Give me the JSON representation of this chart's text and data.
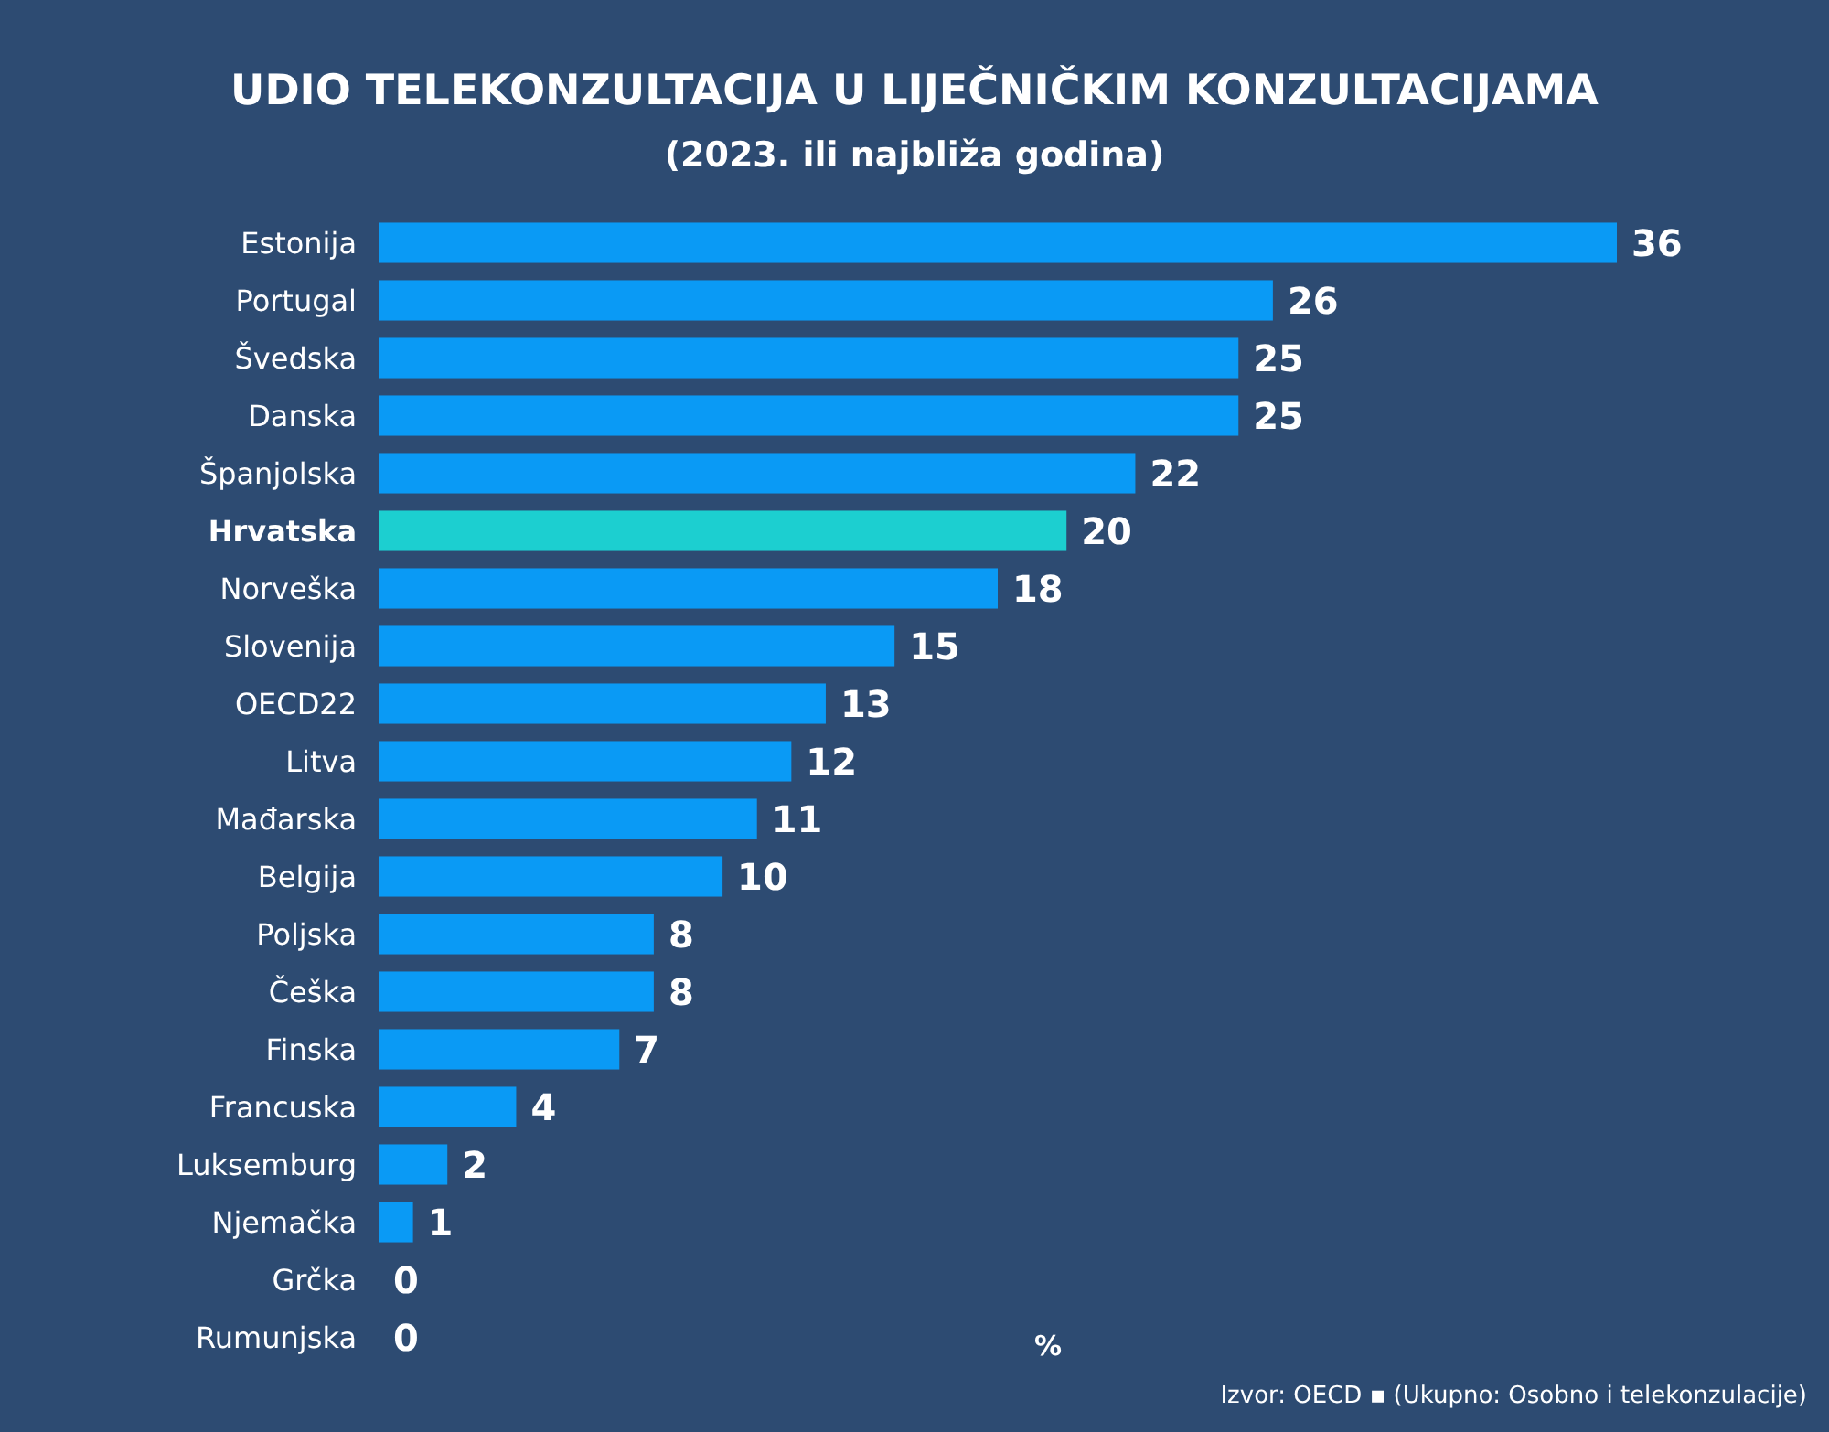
{
  "chart_data": {
    "type": "bar",
    "orientation": "horizontal",
    "title": "UDIO TELEKONZULTACIJA U LIJEČNIČKIM KONZULTACIJAMA",
    "subtitle": "(2023. ili najbliža godina)",
    "xlabel": "%",
    "categories": [
      "Estonija",
      "Portugal",
      "Švedska",
      "Danska",
      "Španjolska",
      "Hrvatska",
      "Norveška",
      "Slovenija",
      "OECD22",
      "Litva",
      "Mađarska",
      "Belgija",
      "Poljska",
      "Češka",
      "Finska",
      "Francuska",
      "Luksemburg",
      "Njemačka",
      "Grčka",
      "Rumunjska"
    ],
    "values": [
      36,
      26,
      25,
      25,
      22,
      20,
      18,
      15,
      13,
      12,
      11,
      10,
      8,
      8,
      7,
      4,
      2,
      1,
      0,
      0
    ],
    "colors": [
      "#0a9af5",
      "#0a9af5",
      "#0a9af5",
      "#0a9af5",
      "#0a9af5",
      "#1ccfd0",
      "#0a9af5",
      "#0a9af5",
      "#0a9af5",
      "#0a9af5",
      "#0a9af5",
      "#0a9af5",
      "#0a9af5",
      "#0a9af5",
      "#0a9af5",
      "#0a9af5",
      "#0a9af5",
      "#0a9af5",
      "#0a9af5",
      "#0a9af5"
    ],
    "xlim": [
      0,
      36
    ],
    "data_labels": true,
    "annotations": [
      "Izvor: OECD ▪ (Ukupno: Osobno i telekonzulacije)"
    ]
  }
}
